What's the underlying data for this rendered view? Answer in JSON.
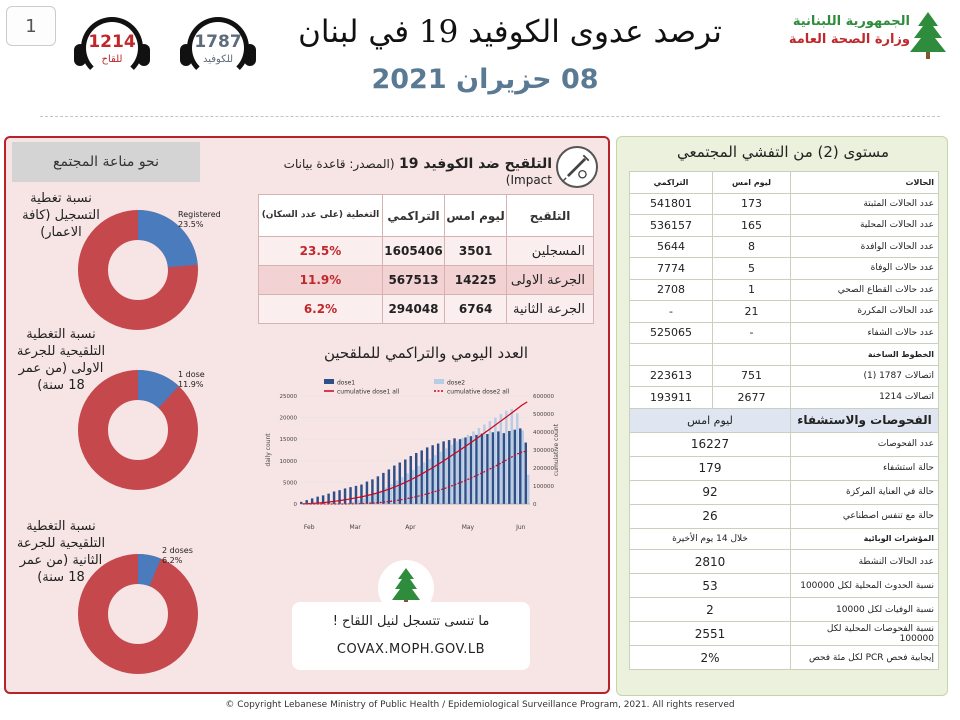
{
  "page_number": "1",
  "header": {
    "title": "ترصد عدوى الكوفيد 19 في لبنان",
    "date": "08 حزيران 2021",
    "ministry_line1": "الجمهورية اللبنانية",
    "ministry_line2": "وزارة الصحة العامة",
    "hotline_vaccine": {
      "number": "1214",
      "label": "للقاح"
    },
    "hotline_covid": {
      "number": "1787",
      "label": "للكوفيد"
    }
  },
  "immunity": {
    "title": "نحو مناعة المجتمع",
    "donuts": [
      {
        "label": "نسبة تغطية التسجيل (كافة الاعمار)",
        "caption_l1": "Registered",
        "caption_l2": "23.5%",
        "fraction": 0.235
      },
      {
        "label": "نسبة التغطية التلقيحية للجرعة الاولى (من عمر 18 سنة)",
        "caption_l1": "1 dose",
        "caption_l2": "11.9%",
        "fraction": 0.119
      },
      {
        "label": "نسبة التغطية التلقيحية للجرعة الثانية (من عمر 18 سنة)",
        "caption_l1": "2 doses",
        "caption_l2": "6.2%",
        "fraction": 0.062
      }
    ],
    "colors": {
      "filled": "#4a7bbd",
      "remaining": "#c5484d"
    }
  },
  "vaccination": {
    "title_bold": "التلقيح ضد الكوفيد 19",
    "title_source": "(المصدر: قاعدة بيانات Impact)",
    "columns": [
      "التلقيح",
      "ليوم امس",
      "التراكمي",
      "التغطية (على عدد السكان)"
    ],
    "rows": [
      {
        "label": "المسجلين",
        "daily": "3501",
        "cumulative": "1605406",
        "coverage": "23.5%"
      },
      {
        "label": "الجرعة الاولى",
        "daily": "14225",
        "cumulative": "567513",
        "coverage": "11.9%"
      },
      {
        "label": "الجرعة الثانية",
        "daily": "6764",
        "cumulative": "294048",
        "coverage": "6.2%"
      }
    ]
  },
  "chart_data": {
    "type": "bar",
    "title": "العدد اليومي والتراكمي للملقحين",
    "legend": [
      "dose1",
      "dose2",
      "cumulative dose1 all",
      "cumulative dose2 all"
    ],
    "ylabel": "daily count",
    "y2label": "cumulative count",
    "ylim": [
      0,
      25000
    ],
    "y2lim": [
      0,
      600000
    ],
    "y_ticks": [
      0,
      5000,
      10000,
      15000,
      20000,
      25000
    ],
    "y2_ticks": [
      0,
      100000,
      200000,
      300000,
      400000,
      500000,
      600000
    ],
    "month_labels": [
      "Feb",
      "Mar",
      "Apr",
      "May",
      "Jun"
    ],
    "series": [
      {
        "name": "dose1",
        "color": "#2e4f88",
        "values": [
          500,
          900,
          1300,
          1700,
          2000,
          2400,
          2900,
          3200,
          3600,
          3900,
          4200,
          4500,
          5200,
          5700,
          6400,
          7200,
          8000,
          8900,
          9600,
          10300,
          11100,
          11800,
          12400,
          13100,
          13600,
          14000,
          14500,
          14800,
          15200,
          15000,
          15400,
          15700,
          16000,
          16300,
          16200,
          16600,
          16800,
          16400,
          16900,
          17200,
          17500,
          14225
        ]
      },
      {
        "name": "dose2",
        "color": "#b7cde6",
        "values": [
          0,
          0,
          0,
          0,
          0,
          0,
          0,
          0,
          200,
          500,
          900,
          1300,
          1800,
          2400,
          3100,
          3800,
          4600,
          5400,
          6200,
          7100,
          7900,
          8800,
          9600,
          10400,
          11300,
          12100,
          12900,
          13700,
          14500,
          15300,
          16000,
          16800,
          17600,
          18400,
          19200,
          20000,
          20800,
          21600,
          22000,
          21000,
          17000,
          6764
        ]
      }
    ],
    "cumulative_dose1_end": 567513,
    "cumulative_dose2_end": 294048,
    "colors": {
      "cum1": "#d0021b",
      "cum2": "#d0021b"
    }
  },
  "cta": {
    "text": "ما تنسى تتسجل لنيل اللقاح !",
    "url": "COVAX.MOPH.GOV.LB"
  },
  "community": {
    "title": "مستوى (2) من التفشي المجتمعي",
    "header_cases": "الحالات",
    "header_daily": "ليوم امس",
    "header_cumulative": "التراكمي",
    "rows": [
      {
        "label": "عدد الحالات المثبتة",
        "daily": "173",
        "cumulative": "541801"
      },
      {
        "label": "عدد الحالات المحلية",
        "daily": "165",
        "cumulative": "536157"
      },
      {
        "label": "عدد الحالات الوافدة",
        "daily": "8",
        "cumulative": "5644"
      },
      {
        "label": "عدد حالات الوفاة",
        "daily": "5",
        "cumulative": "7774"
      },
      {
        "label": "عدد حالات القطاع الصحي",
        "daily": "1",
        "cumulative": "2708"
      },
      {
        "label": "عدد الحالات المكررة",
        "daily": "21",
        "cumulative": "-"
      },
      {
        "label": "عدد حالات الشفاء",
        "daily": "-",
        "cumulative": "525065"
      }
    ],
    "hotlines_header": "الخطوط الساخنة",
    "hotlines": [
      {
        "label": "اتصالات 1787 (1)",
        "daily": "751",
        "cumulative": "223613"
      },
      {
        "label": "اتصالات 1214",
        "daily": "2677",
        "cumulative": "193911"
      }
    ],
    "tests_header": "الفحوصات والاستشفاء",
    "tests_daily_header": "ليوم امس",
    "tests": [
      {
        "label": "عدد الفحوصات",
        "value": "16227"
      },
      {
        "label": "حالة استشفاء",
        "value": "179"
      },
      {
        "label": "حالة في العناية المركزة",
        "value": "92"
      },
      {
        "label": "حالة مع تنفس اصطناعي",
        "value": "26"
      }
    ],
    "indicators_header": "المؤشرات الوبائية",
    "indicators_period": "خلال 14 يوم الأخيرة",
    "indicators": [
      {
        "label": "عدد الحالات النشطة",
        "value": "2810"
      },
      {
        "label": "نسبة الحدوث المحلية لكل 100000",
        "value": "53"
      },
      {
        "label": "نسبة الوفيات لكل 10000",
        "value": "2"
      },
      {
        "label": "نسبة الفحوصات المحلية لكل 100000",
        "value": "2551"
      },
      {
        "label": "إيجابية فحص PCR لكل مئة فحص",
        "value": "2%"
      }
    ]
  },
  "copyright": "© Copyright Lebanese Ministry of Public Health / Epidemiological Surveillance Program, 2021. All rights reserved"
}
